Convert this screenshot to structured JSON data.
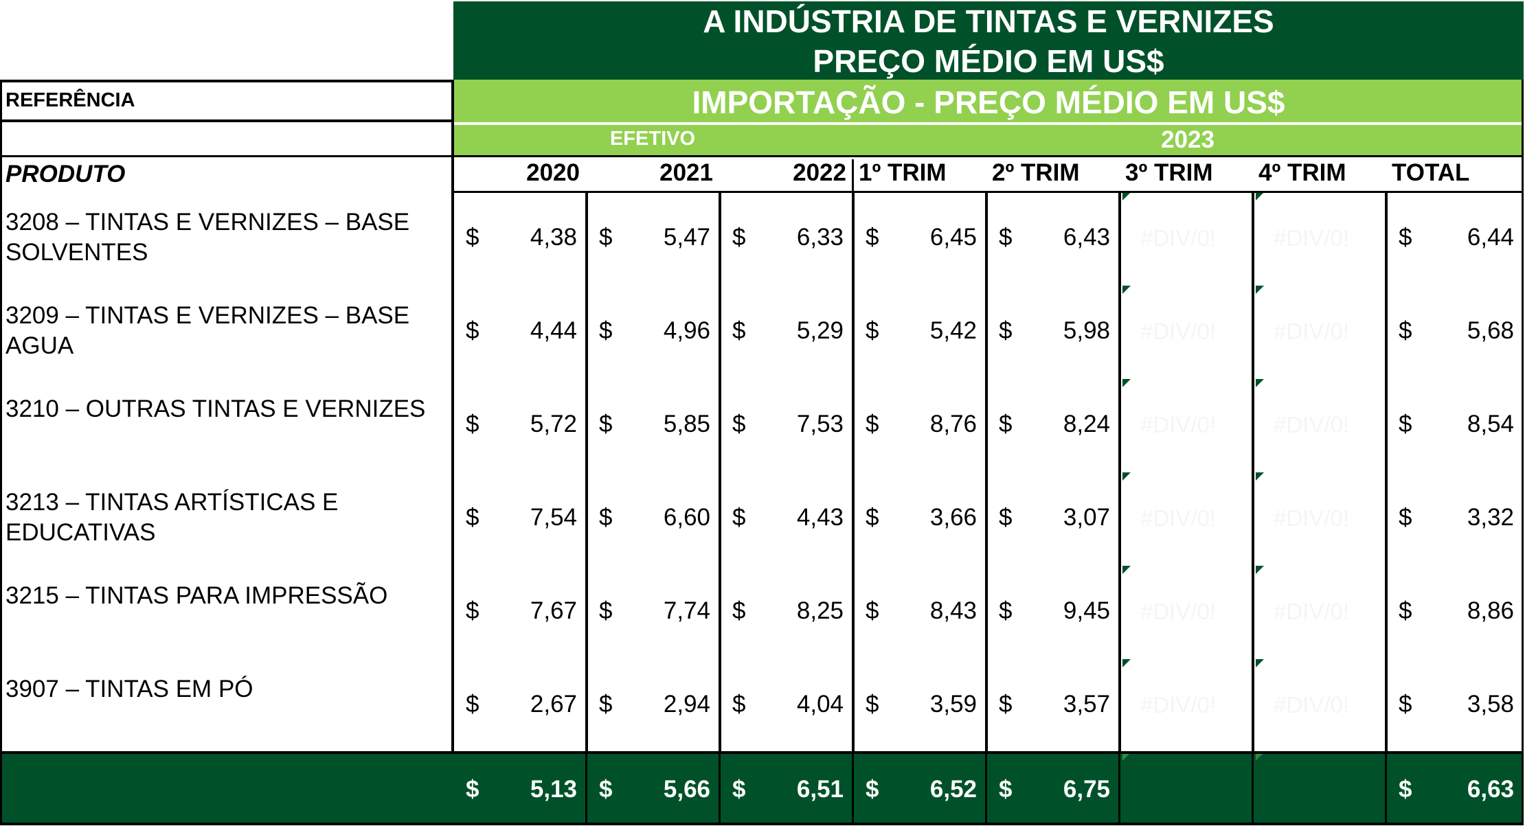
{
  "chart_data": {
    "type": "table",
    "title": "A INDÚSTRIA DE TINTAS E VERNIZES",
    "title_line2": "PREÇO MÉDIO EM US$",
    "reference_label": "REFERÊNCIA",
    "section_title": "IMPORTAÇÃO - PREÇO MÉDIO EM US$",
    "group_efetivo": "EFETIVO",
    "group_year": "2023",
    "product_header": "PRODUTO",
    "currency": "$",
    "columns": [
      "2020",
      "2021",
      "2022",
      "1º TRIM",
      "2º TRIM",
      "3º TRIM",
      "4º TRIM",
      "TOTAL"
    ],
    "rows": [
      {
        "product": "3208 – TINTAS E VERNIZES – BASE SOLVENTES",
        "values": [
          "4,38",
          "5,47",
          "6,33",
          "6,45",
          "6,43",
          "#DIV/0!",
          "#DIV/0!",
          "6,44"
        ]
      },
      {
        "product": "3209 – TINTAS E VERNIZES – BASE AGUA",
        "values": [
          "4,44",
          "4,96",
          "5,29",
          "5,42",
          "5,98",
          "#DIV/0!",
          "#DIV/0!",
          "5,68"
        ]
      },
      {
        "product": "3210 – OUTRAS TINTAS E VERNIZES",
        "values": [
          "5,72",
          "5,85",
          "7,53",
          "8,76",
          "8,24",
          "#DIV/0!",
          "#DIV/0!",
          "8,54"
        ]
      },
      {
        "product": "3213 – TINTAS ARTÍSTICAS E EDUCATIVAS",
        "values": [
          "7,54",
          "6,60",
          "4,43",
          "3,66",
          "3,07",
          "#DIV/0!",
          "#DIV/0!",
          "3,32"
        ]
      },
      {
        "product": "3215 – TINTAS PARA IMPRESSÃO",
        "values": [
          "7,67",
          "7,74",
          "8,25",
          "8,43",
          "9,45",
          "#DIV/0!",
          "#DIV/0!",
          "8,86"
        ]
      },
      {
        "product": "3907 – TINTAS EM PÓ",
        "values": [
          "2,67",
          "2,94",
          "4,04",
          "3,59",
          "3,57",
          "#DIV/0!",
          "#DIV/0!",
          "3,58"
        ]
      }
    ],
    "total_row": [
      "5,13",
      "5,66",
      "6,51",
      "6,52",
      "6,75",
      "",
      "",
      "6,63"
    ],
    "colors": {
      "dark_green": "#005129",
      "light_green": "#92d050",
      "text_white": "#ffffff"
    }
  }
}
